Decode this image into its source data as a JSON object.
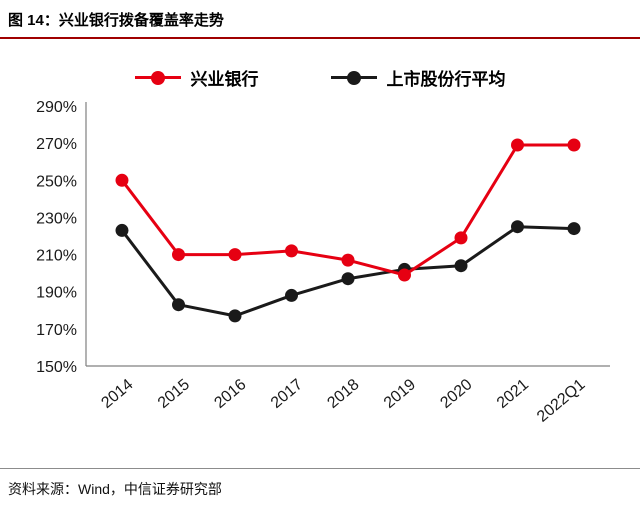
{
  "header": {
    "title": "图 14：兴业银行拨备覆盖率走势"
  },
  "footer": {
    "source": "资料来源：Wind，中信证券研究部"
  },
  "colors": {
    "title_rule": "#a00000",
    "axis": "#808080",
    "tick_text": "#1a1a1a"
  },
  "chart_data": {
    "type": "line",
    "title": "兴业银行拨备覆盖率走势",
    "categories": [
      "2014",
      "2015",
      "2016",
      "2017",
      "2018",
      "2019",
      "2020",
      "2021",
      "2022Q1"
    ],
    "series": [
      {
        "name": "兴业银行",
        "color": "#e60012",
        "values": [
          250,
          210,
          210,
          212,
          207,
          199,
          219,
          269,
          269
        ]
      },
      {
        "name": "上市股份行平均",
        "color": "#1a1a1a",
        "values": [
          223,
          183,
          177,
          188,
          197,
          202,
          204,
          225,
          224
        ]
      }
    ],
    "ylim": [
      150,
      290
    ],
    "ytick_step": 20,
    "ytick_suffix": "%",
    "xlabel": "",
    "ylabel": "",
    "grid": false,
    "legend_position": "top",
    "marker": "circle",
    "x_label_rotation": -40
  }
}
